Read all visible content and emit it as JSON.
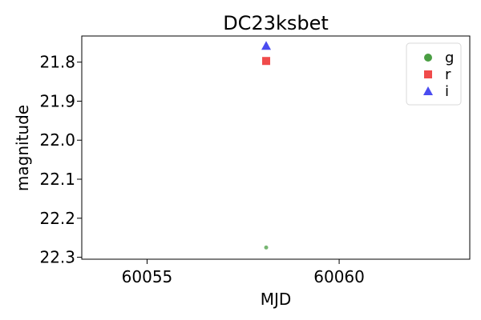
{
  "chart_data": {
    "type": "scatter",
    "title": "DC23ksbet",
    "xlabel": "MJD",
    "ylabel": "magnitude",
    "xlim": [
      60053.3,
      60063.4
    ],
    "ylim": [
      22.305,
      21.733
    ],
    "y_inverted": true,
    "x_ticks": [
      {
        "value": 60055,
        "label": "60055"
      },
      {
        "value": 60060,
        "label": "60060"
      }
    ],
    "y_ticks": [
      {
        "value": 21.8,
        "label": "21.8"
      },
      {
        "value": 21.9,
        "label": "21.9"
      },
      {
        "value": 22.0,
        "label": "22.0"
      },
      {
        "value": 22.1,
        "label": "22.1"
      },
      {
        "value": 22.2,
        "label": "22.2"
      },
      {
        "value": 22.3,
        "label": "22.3"
      }
    ],
    "legend_position": "top-right",
    "grid": false,
    "series": [
      {
        "name": "g",
        "marker": "circle",
        "color": "#4a9e43",
        "points": [
          {
            "x": 60058.1,
            "y": 22.275
          }
        ]
      },
      {
        "name": "r",
        "marker": "square",
        "color": "#f04b4b",
        "points": [
          {
            "x": 60058.1,
            "y": 21.797
          }
        ]
      },
      {
        "name": "i",
        "marker": "triangle",
        "color": "#4a4cf0",
        "points": [
          {
            "x": 60058.1,
            "y": 21.758
          }
        ]
      }
    ]
  }
}
